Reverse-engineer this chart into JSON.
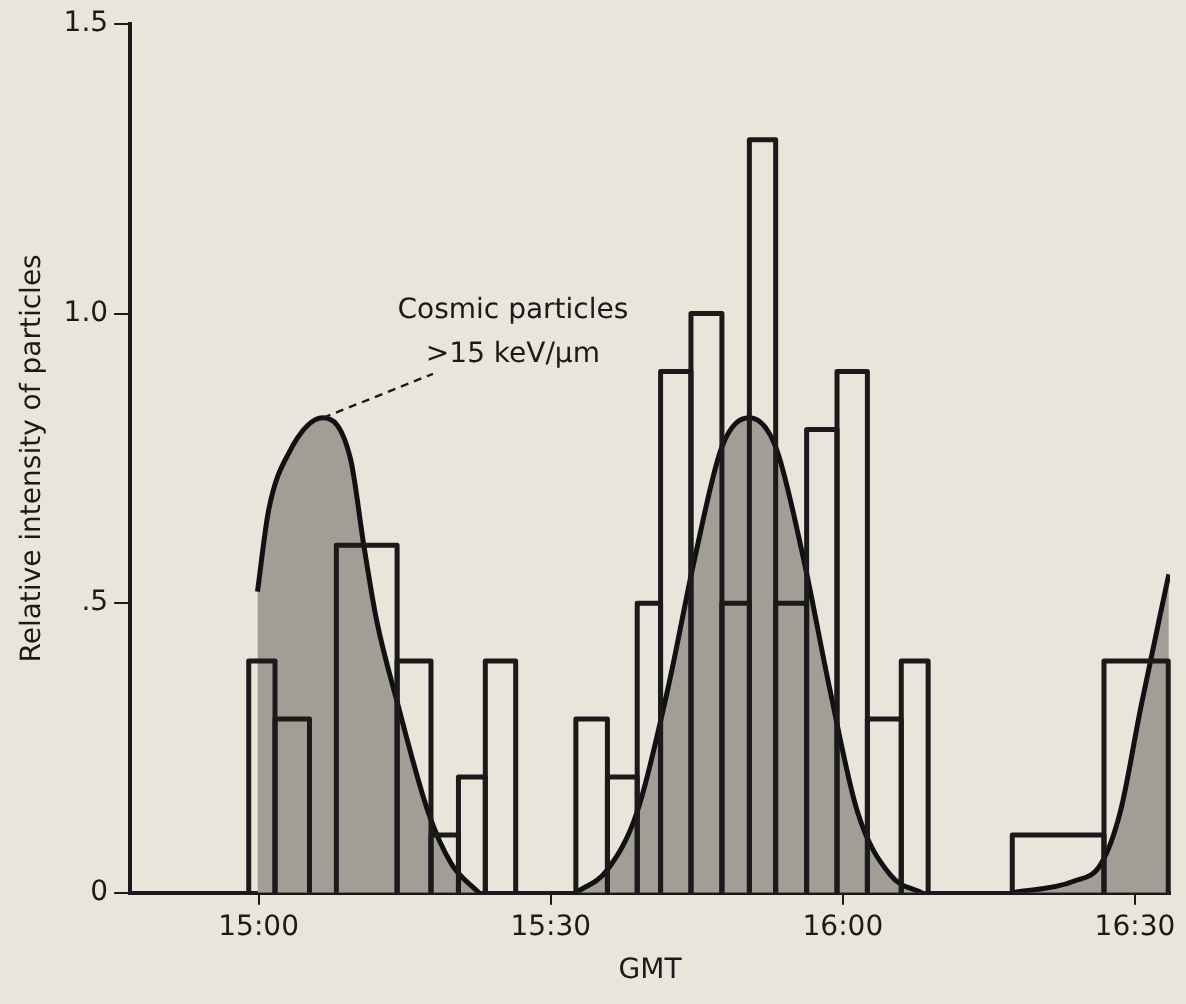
{
  "chart_data": {
    "type": "histogram",
    "xlabel": "GMT",
    "ylabel": "Relative intensity of particles",
    "bins": [
      14.983,
      15.028,
      15.087,
      15.133,
      15.237,
      15.295,
      15.342,
      15.388,
      15.44,
      15.543,
      15.597,
      15.648,
      15.688,
      15.74,
      15.793,
      15.84,
      15.885,
      15.938,
      15.99,
      16.042,
      16.1,
      16.146,
      16.29,
      16.447,
      16.557
    ],
    "values": [
      0.4,
      0.3,
      0,
      0.6,
      0.4,
      0.1,
      0.2,
      0.4,
      0,
      0.3,
      0.2,
      0.5,
      0.9,
      1.0,
      0.5,
      1.3,
      0.5,
      0.8,
      0.9,
      0.3,
      0.4,
      0,
      0.1,
      0.4
    ],
    "color": "#1a1a1a",
    "series": [
      {
        "type": "area",
        "color": "#a39e95",
        "x": [
          14.998,
          15.017,
          15.052,
          15.11,
          15.157,
          15.18,
          15.202,
          15.237,
          15.29,
          15.33,
          15.377
        ],
        "values": [
          0.52,
          0.66,
          0.76,
          0.82,
          0.75,
          0.6,
          0.47,
          0.33,
          0.14,
          0.05,
          0
        ]
      },
      {
        "type": "area",
        "color": "#a39e95",
        "x": [
          15.543,
          15.597,
          15.648,
          15.7,
          15.747,
          15.793,
          15.84,
          15.885,
          15.932,
          15.978,
          16.025,
          16.082,
          16.135
        ],
        "values": [
          0,
          0.04,
          0.14,
          0.35,
          0.58,
          0.77,
          0.82,
          0.77,
          0.58,
          0.35,
          0.14,
          0.03,
          0
        ]
      },
      {
        "type": "area",
        "color": "#a39e95",
        "x": [
          16.29,
          16.395,
          16.442,
          16.475,
          16.51,
          16.558
        ],
        "values": [
          0,
          0.02,
          0.05,
          0.14,
          0.32,
          0.55
        ]
      }
    ],
    "xlim": [
      14.78,
      16.56
    ],
    "xticks": [
      {
        "value": 15,
        "label": "15:00"
      },
      {
        "value": 15.5,
        "label": "15:30"
      },
      {
        "value": 16,
        "label": "16:00"
      },
      {
        "value": 16.5,
        "label": "16:30"
      }
    ],
    "ylim": [
      0,
      1.5
    ],
    "yticks": [
      0,
      {
        "value": 0.5,
        "label": ".5"
      },
      {
        "value": 1,
        "label": "1.0"
      },
      {
        "value": 1.5,
        "label": "1.5"
      }
    ],
    "annotations": [
      {
        "text": "Cosmic particles >15 keV/μm",
        "x": 15.11,
        "y": 0.82
      }
    ],
    "grid": false,
    "legend": false
  }
}
